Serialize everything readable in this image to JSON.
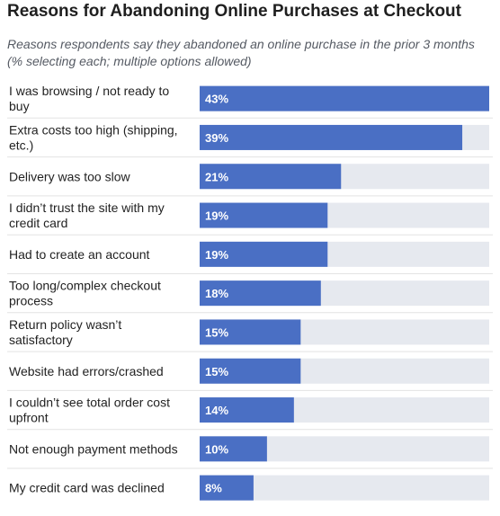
{
  "chart_data": {
    "type": "bar",
    "orientation": "horizontal",
    "title": "Reasons for Abandoning Online Purchases at Checkout",
    "subtitle": "Reasons respondents say they abandoned an online purchase in the prior 3 months (% selecting each; multiple options allowed)",
    "categories": [
      [
        "I was browsing / not ready to",
        "buy"
      ],
      [
        "Extra costs too high (shipping,",
        "etc.)"
      ],
      [
        "Delivery was too slow"
      ],
      [
        "I didn’t trust the site with my",
        "credit card"
      ],
      [
        "Had to create an account"
      ],
      [
        "Too long/complex checkout",
        "process"
      ],
      [
        "Return policy wasn’t",
        "satisfactory"
      ],
      [
        "Website had errors/crashed"
      ],
      [
        "I couldn’t see total order cost",
        "upfront"
      ],
      [
        "Not enough payment methods"
      ],
      [
        "My credit card was declined"
      ]
    ],
    "values": [
      43,
      39,
      21,
      19,
      19,
      18,
      15,
      15,
      14,
      10,
      8
    ],
    "value_labels": [
      "43%",
      "39%",
      "21%",
      "19%",
      "19%",
      "18%",
      "15%",
      "15%",
      "14%",
      "10%",
      "8%"
    ],
    "xlim": [
      0,
      43
    ],
    "colors": {
      "bar": "#4a6fc4",
      "track": "#e6e9ef",
      "divider": "#e3e3e3"
    }
  }
}
